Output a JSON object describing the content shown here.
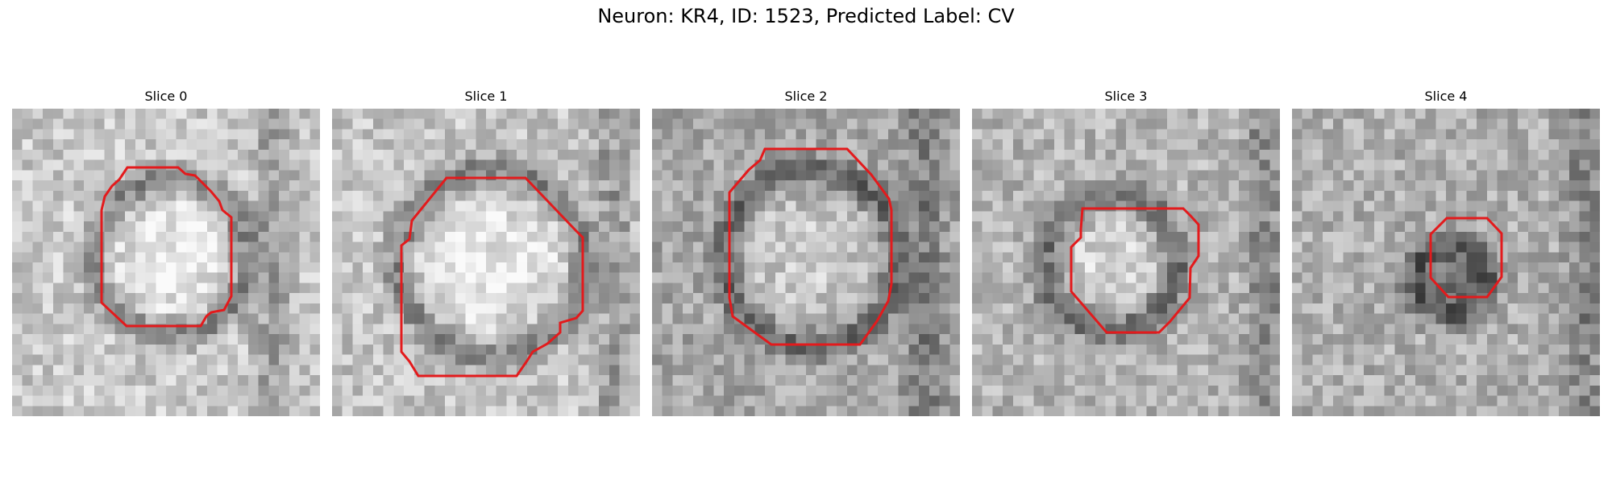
{
  "figure": {
    "title": "Neuron: KR4, ID: 1523, Predicted Label: CV"
  },
  "panels": [
    {
      "title": "Slice 0"
    },
    {
      "title": "Slice 1"
    },
    {
      "title": "Slice 2"
    },
    {
      "title": "Slice 3"
    },
    {
      "title": "Slice 4"
    }
  ],
  "colors": {
    "contour": "#e31a1c",
    "background": "#ffffff"
  }
}
